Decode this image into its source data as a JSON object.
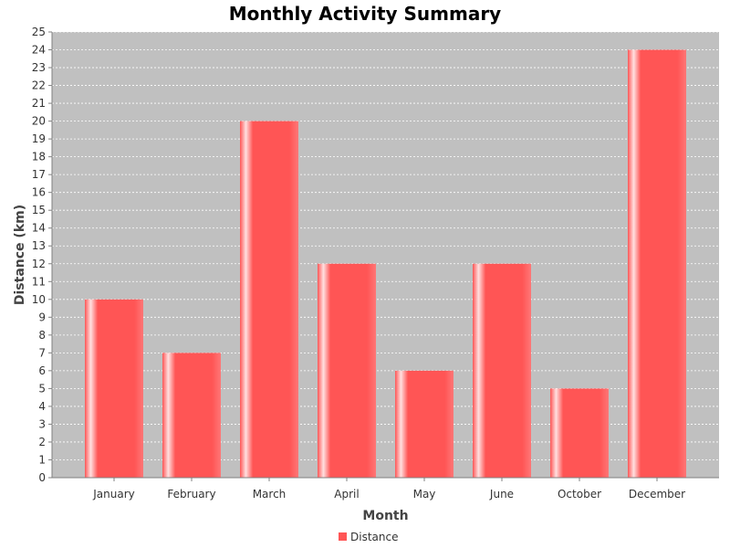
{
  "chart_data": {
    "type": "bar",
    "title": "Monthly Activity Summary",
    "xlabel": "Month",
    "ylabel": "Distance (km)",
    "categories": [
      "January",
      "February",
      "March",
      "April",
      "May",
      "June",
      "October",
      "December"
    ],
    "series": [
      {
        "name": "Distance",
        "values": [
          10,
          7,
          20,
          12,
          6,
          12,
          5,
          24
        ]
      }
    ],
    "ylim": [
      0,
      25
    ],
    "yticks": [
      0,
      1,
      2,
      3,
      4,
      5,
      6,
      7,
      8,
      9,
      10,
      11,
      12,
      13,
      14,
      15,
      16,
      17,
      18,
      19,
      20,
      21,
      22,
      23,
      24,
      25
    ],
    "grid": true,
    "legend_position": "bottom-center",
    "colors": {
      "plot_background": "#c0c0c0",
      "bar": "#ff5555",
      "bar_highlight": "#ffe0e0",
      "gridline": "#ffffff"
    }
  }
}
